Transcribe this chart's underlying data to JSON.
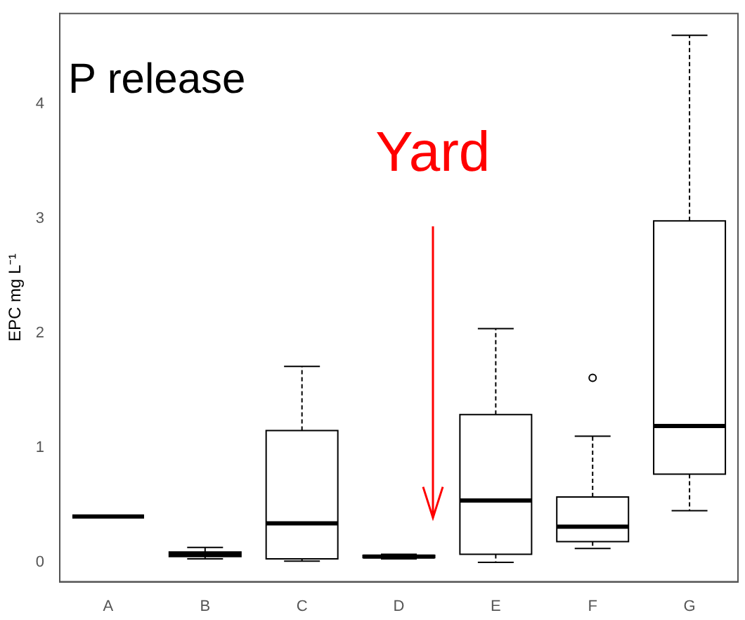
{
  "chart_data": {
    "type": "box",
    "categories": [
      "A",
      "B",
      "C",
      "D",
      "E",
      "F",
      "G"
    ],
    "boxes": [
      {
        "low": 0.4,
        "q1": 0.4,
        "median": 0.4,
        "q3": 0.4,
        "high": 0.4
      },
      {
        "low": 0.03,
        "q1": 0.05,
        "median": 0.07,
        "q3": 0.09,
        "high": 0.13
      },
      {
        "low": 0.01,
        "q1": 0.03,
        "median": 0.34,
        "q3": 1.15,
        "high": 1.71
      },
      {
        "low": 0.03,
        "q1": 0.04,
        "median": 0.05,
        "q3": 0.06,
        "high": 0.07
      },
      {
        "low": 0.0,
        "q1": 0.07,
        "median": 0.54,
        "q3": 1.29,
        "high": 2.04
      },
      {
        "low": 0.12,
        "q1": 0.18,
        "median": 0.31,
        "q3": 0.57,
        "high": 1.1,
        "outliers": [
          1.61
        ]
      },
      {
        "low": 0.45,
        "q1": 0.77,
        "median": 1.19,
        "q3": 2.98,
        "high": 4.6
      }
    ],
    "color": "#000000",
    "ylabel": "EPC mg L⁻¹",
    "ylim": [
      -0.17,
      4.79
    ],
    "yticks": [
      0,
      1,
      2,
      3,
      4
    ],
    "grid": false,
    "legend": false,
    "annotations": [
      "P release",
      "Yard"
    ]
  }
}
